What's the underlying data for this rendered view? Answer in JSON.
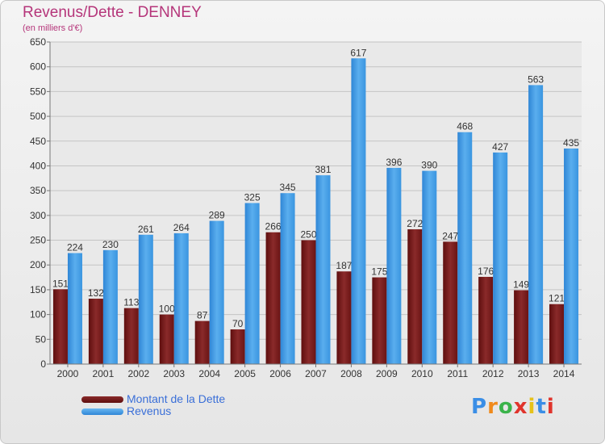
{
  "header": {
    "title": "Revenus/Dette - DENNEY",
    "subtitle": "(en milliers d'€)"
  },
  "logo": {
    "text": "Proxiti"
  },
  "colors": {
    "dette": "#7a1a1a",
    "revenus": "#3a95e0",
    "title": "#b5357a",
    "legend_text": "#3a6fd8"
  },
  "chart_data": {
    "type": "bar",
    "title": "Revenus/Dette - DENNEY",
    "subtitle": "(en milliers d'€)",
    "xlabel": "",
    "ylabel": "",
    "ylim": [
      0,
      650
    ],
    "yticks": [
      0,
      50,
      100,
      150,
      200,
      250,
      300,
      350,
      400,
      450,
      500,
      550,
      600,
      650
    ],
    "grid": true,
    "legend_position": "bottom-left",
    "categories": [
      "2000",
      "2001",
      "2002",
      "2003",
      "2004",
      "2005",
      "2006",
      "2007",
      "2008",
      "2009",
      "2010",
      "2011",
      "2012",
      "2013",
      "2014"
    ],
    "series": [
      {
        "name": "Montant de la Dette",
        "color": "#7a1a1a",
        "values": [
          151,
          132,
          113,
          100,
          87,
          70,
          266,
          250,
          187,
          175,
          272,
          247,
          176,
          149,
          121
        ]
      },
      {
        "name": "Revenus",
        "color": "#3a95e0",
        "values": [
          224,
          230,
          261,
          264,
          289,
          325,
          345,
          381,
          617,
          396,
          390,
          468,
          427,
          563,
          435
        ]
      }
    ]
  }
}
